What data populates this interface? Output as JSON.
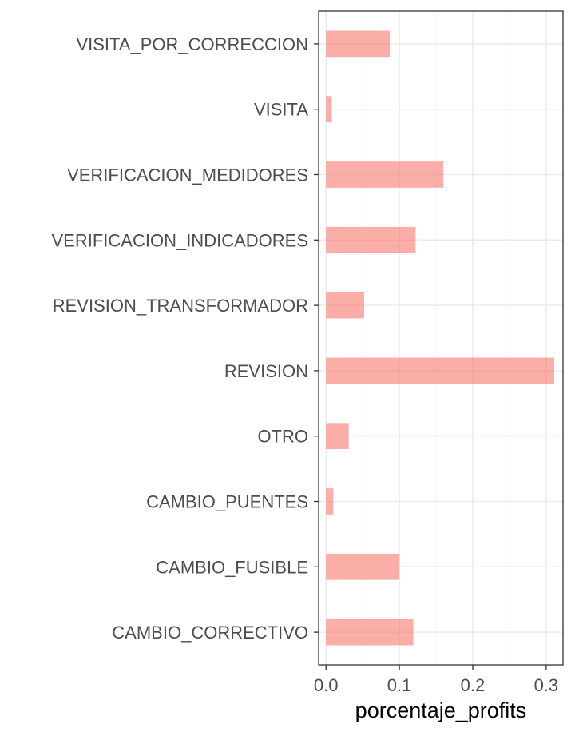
{
  "chart_data": {
    "type": "bar",
    "orientation": "horizontal",
    "title": "",
    "xlabel": "porcentaje_profits",
    "ylabel": "",
    "categories": [
      "VISITA_POR_CORRECCION",
      "VISITA",
      "VERIFICACION_MEDIDORES",
      "VERIFICACION_INDICADORES",
      "REVISION_TRANSFORMADOR",
      "REVISION",
      "OTRO",
      "CAMBIO_PUENTES",
      "CAMBIO_FUSIBLE",
      "CAMBIO_CORRECTIVO"
    ],
    "values": [
      0.087,
      0.008,
      0.16,
      0.122,
      0.052,
      0.311,
      0.031,
      0.01,
      0.1,
      0.119
    ],
    "xlim": [
      -0.01,
      0.323
    ],
    "xticks": [
      0.0,
      0.1,
      0.2,
      0.3
    ],
    "xtick_labels": [
      "0.0",
      "0.1",
      "0.2",
      "0.3"
    ],
    "grid": true,
    "legend": "none",
    "colors": {
      "bar": "#f8766d",
      "bar_opacity": 0.6,
      "grid_major": "#ebebeb",
      "grid_minor": "#f5f5f5",
      "panel_border": "#333333",
      "tick_text": "#4d4d4d",
      "axis_title": "#000000"
    }
  }
}
